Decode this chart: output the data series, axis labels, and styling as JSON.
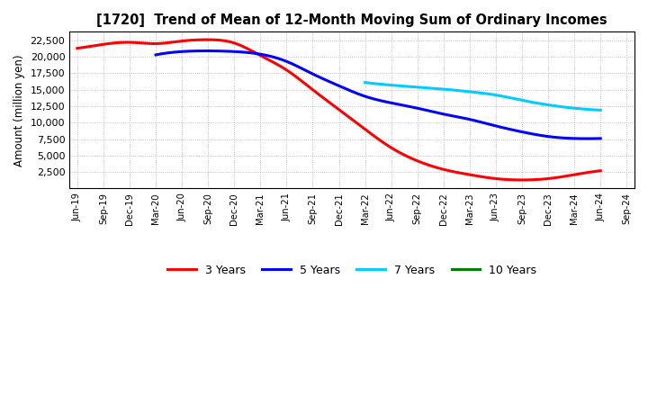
{
  "title": "[1720]  Trend of Mean of 12-Month Moving Sum of Ordinary Incomes",
  "ylabel": "Amount (million yen)",
  "background_color": "#ffffff",
  "grid_color": "#b0b0b0",
  "x_labels": [
    "Jun-19",
    "Sep-19",
    "Dec-19",
    "Mar-20",
    "Jun-20",
    "Sep-20",
    "Dec-20",
    "Mar-21",
    "Jun-21",
    "Sep-21",
    "Dec-21",
    "Mar-22",
    "Jun-22",
    "Sep-22",
    "Dec-22",
    "Mar-23",
    "Jun-23",
    "Sep-23",
    "Dec-23",
    "Mar-24",
    "Jun-24",
    "Sep-24"
  ],
  "yticks": [
    2500,
    5000,
    7500,
    10000,
    12500,
    15000,
    17500,
    20000,
    22500
  ],
  "ylim": [
    0,
    23800
  ],
  "series": {
    "3 Years": {
      "color": "#ff0000",
      "values": [
        21300,
        21900,
        22200,
        22000,
        22400,
        22600,
        22100,
        20200,
        18000,
        15000,
        12000,
        9000,
        6200,
        4200,
        2900,
        2100,
        1500,
        1300,
        1500,
        2100,
        2700,
        null
      ]
    },
    "5 Years": {
      "color": "#0000ff",
      "values": [
        null,
        null,
        null,
        20300,
        20800,
        20900,
        20800,
        20400,
        19300,
        17400,
        15600,
        14000,
        13000,
        12200,
        11300,
        10500,
        9500,
        8600,
        7900,
        7600,
        7600,
        null
      ]
    },
    "7 Years": {
      "color": "#00ccff",
      "values": [
        null,
        null,
        null,
        null,
        null,
        null,
        null,
        null,
        null,
        null,
        null,
        16100,
        15700,
        15400,
        15100,
        14700,
        14200,
        13400,
        12700,
        12200,
        11900,
        null
      ]
    },
    "10 Years": {
      "color": "#008000",
      "values": [
        null,
        null,
        null,
        null,
        null,
        null,
        null,
        null,
        null,
        null,
        null,
        null,
        null,
        null,
        null,
        null,
        null,
        null,
        null,
        null,
        null,
        null
      ]
    }
  },
  "legend_order": [
    "3 Years",
    "5 Years",
    "7 Years",
    "10 Years"
  ]
}
